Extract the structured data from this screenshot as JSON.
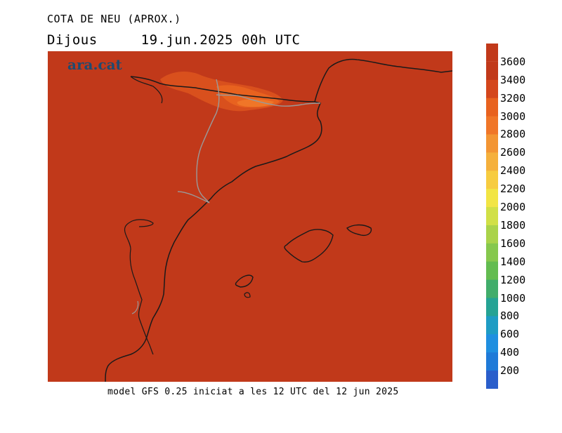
{
  "header": {
    "title": "COTA DE NEU (APROX.)",
    "day": "Dijous",
    "datetime": "19.jun.2025 00h UTC"
  },
  "logo": {
    "text": "ara.cat",
    "color": "#1f4a70"
  },
  "footer": {
    "model_info": "model GFS 0.25 iniciat a les 12 UTC del 12 jun 2025"
  },
  "colors": {
    "background_field": "#c1391a",
    "high_zone": "#e8621f",
    "mid_zone": "#f08a30",
    "coastline": "#1a1a1a",
    "border": "#9a9a9a"
  },
  "legend": {
    "unit_levels": [
      "3600",
      "3400",
      "3200",
      "3000",
      "2800",
      "2600",
      "2400",
      "2200",
      "2000",
      "1800",
      "1600",
      "1400",
      "1200",
      "1000",
      "800",
      "600",
      "400",
      "200"
    ],
    "colors": [
      "#c1391a",
      "#d4461c",
      "#e8621f",
      "#f07628",
      "#f39533",
      "#f5b03c",
      "#f7cc40",
      "#f2e544",
      "#d1e046",
      "#aad34a",
      "#86c84d",
      "#63bc50",
      "#41ad6b",
      "#25a394",
      "#1e9cc4",
      "#1f8fe0",
      "#1f7ad8",
      "#2a5ecb"
    ]
  }
}
